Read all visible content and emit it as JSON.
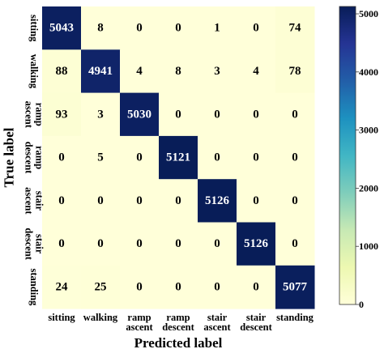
{
  "chart_data": {
    "type": "heatmap",
    "title": "",
    "xlabel": "Predicted label",
    "ylabel": "True label",
    "x_categories": [
      [
        "sitting"
      ],
      [
        "walking"
      ],
      [
        "ramp",
        "ascent"
      ],
      [
        "ramp",
        "descent"
      ],
      [
        "stair",
        "ascent"
      ],
      [
        "stair",
        "descent"
      ],
      [
        "standing"
      ]
    ],
    "y_categories": [
      [
        "sitting"
      ],
      [
        "walking"
      ],
      [
        "ramp",
        "ascent"
      ],
      [
        "ramp",
        "descent"
      ],
      [
        "stair",
        "ascent"
      ],
      [
        "stair",
        "descent"
      ],
      [
        "standing"
      ]
    ],
    "matrix": [
      [
        5043,
        8,
        0,
        0,
        1,
        0,
        74
      ],
      [
        88,
        4941,
        4,
        8,
        3,
        4,
        78
      ],
      [
        93,
        3,
        5030,
        0,
        0,
        0,
        0
      ],
      [
        0,
        5,
        0,
        5121,
        0,
        0,
        0
      ],
      [
        0,
        0,
        0,
        0,
        5126,
        0,
        0
      ],
      [
        0,
        0,
        0,
        0,
        0,
        5126,
        0
      ],
      [
        24,
        25,
        0,
        0,
        0,
        0,
        5077
      ]
    ],
    "colorbar": {
      "colormap": "YlGnBu",
      "min": 0,
      "max": 5126,
      "ticks": [
        0,
        1000,
        2000,
        3000,
        4000,
        5000
      ]
    }
  }
}
